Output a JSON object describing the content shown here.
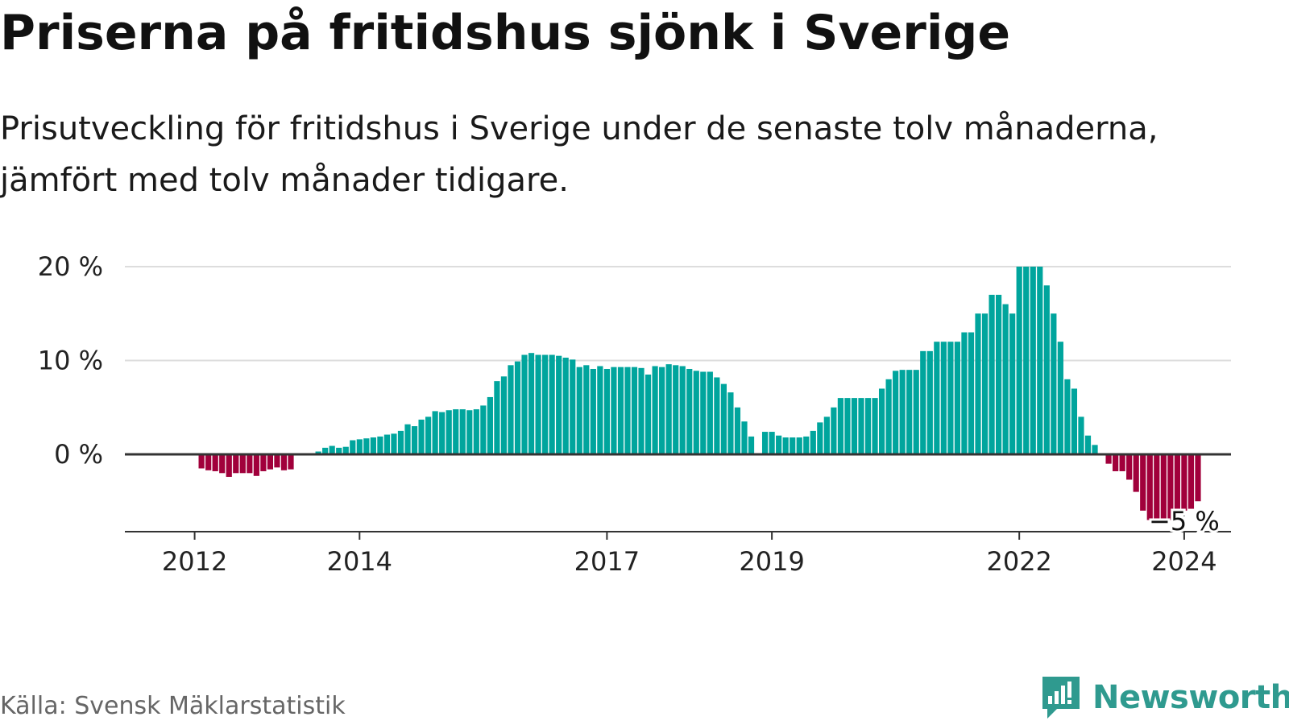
{
  "title": "Priserna på fritidshus sjönk i Sverige",
  "subtitle": "Prisutveckling för fritidshus i Sverige under de senaste tolv månaderna, jämfört med tolv månader tidigare.",
  "source": "Källa: Svensk Mäklarstatistik",
  "brand": {
    "name": "Newsworthy",
    "icon": "newsworthy-logo-icon",
    "color": "#2f9a8f"
  },
  "colors": {
    "positive": "#00a59d",
    "negative": "#a1003b",
    "grid": "#dddddd",
    "axis": "#333333"
  },
  "chart_data": {
    "type": "bar",
    "title": "Priserna på fritidshus sjönk i Sverige",
    "xlabel": "",
    "ylabel": "",
    "unit": "%",
    "ylim": [
      -8,
      20
    ],
    "yticks": [
      0,
      10,
      20
    ],
    "ytick_labels": [
      "0 %",
      "10 %",
      "20 %"
    ],
    "start": "2011-10",
    "xtick_labels": [
      {
        "month_index": 3,
        "label": "2012"
      },
      {
        "month_index": 27,
        "label": "2014"
      },
      {
        "month_index": 63,
        "label": "2017"
      },
      {
        "month_index": 87,
        "label": "2019"
      },
      {
        "month_index": 123,
        "label": "2022"
      },
      {
        "month_index": 147,
        "label": "2024"
      }
    ],
    "annotation": {
      "month_index": 147,
      "label": "−5 %"
    },
    "values": [
      0,
      0,
      0,
      0,
      -1.5,
      -1.7,
      -1.8,
      -2,
      -2.4,
      -2,
      -2,
      -2,
      -2.3,
      -1.8,
      -1.6,
      -1.4,
      -1.7,
      -1.6,
      0,
      0,
      0,
      0.3,
      0.7,
      0.9,
      0.7,
      0.8,
      1.5,
      1.6,
      1.7,
      1.8,
      1.9,
      2.1,
      2.2,
      2.5,
      3.2,
      3,
      3.7,
      4,
      4.6,
      4.5,
      4.7,
      4.8,
      4.8,
      4.7,
      4.8,
      5.2,
      6.1,
      7.8,
      8.3,
      9.5,
      9.9,
      10.6,
      10.8,
      10.6,
      10.6,
      10.6,
      10.5,
      10.3,
      10.1,
      9.3,
      9.5,
      9.1,
      9.4,
      9.1,
      9.3,
      9.3,
      9.3,
      9.3,
      9.2,
      8.5,
      9.4,
      9.3,
      9.6,
      9.5,
      9.4,
      9.1,
      8.9,
      8.8,
      8.8,
      8.2,
      7.5,
      6.6,
      5,
      3.5,
      1.9,
      0,
      2.4,
      2.4,
      2,
      1.8,
      1.8,
      1.8,
      1.9,
      2.5,
      3.4,
      4,
      5,
      6,
      6,
      6,
      6,
      6,
      6,
      7,
      8,
      8.9,
      9,
      9,
      9,
      11,
      11,
      12,
      12,
      12,
      12,
      13,
      13,
      15,
      15,
      17,
      17,
      16,
      15,
      20,
      20,
      20,
      20,
      18,
      15,
      12,
      8,
      7,
      4,
      2,
      1,
      0,
      -1,
      -1.8,
      -1.8,
      -2.7,
      -4,
      -6,
      -7,
      -7,
      -7,
      -7,
      -6.8,
      -6,
      -5.8,
      -5
    ]
  }
}
